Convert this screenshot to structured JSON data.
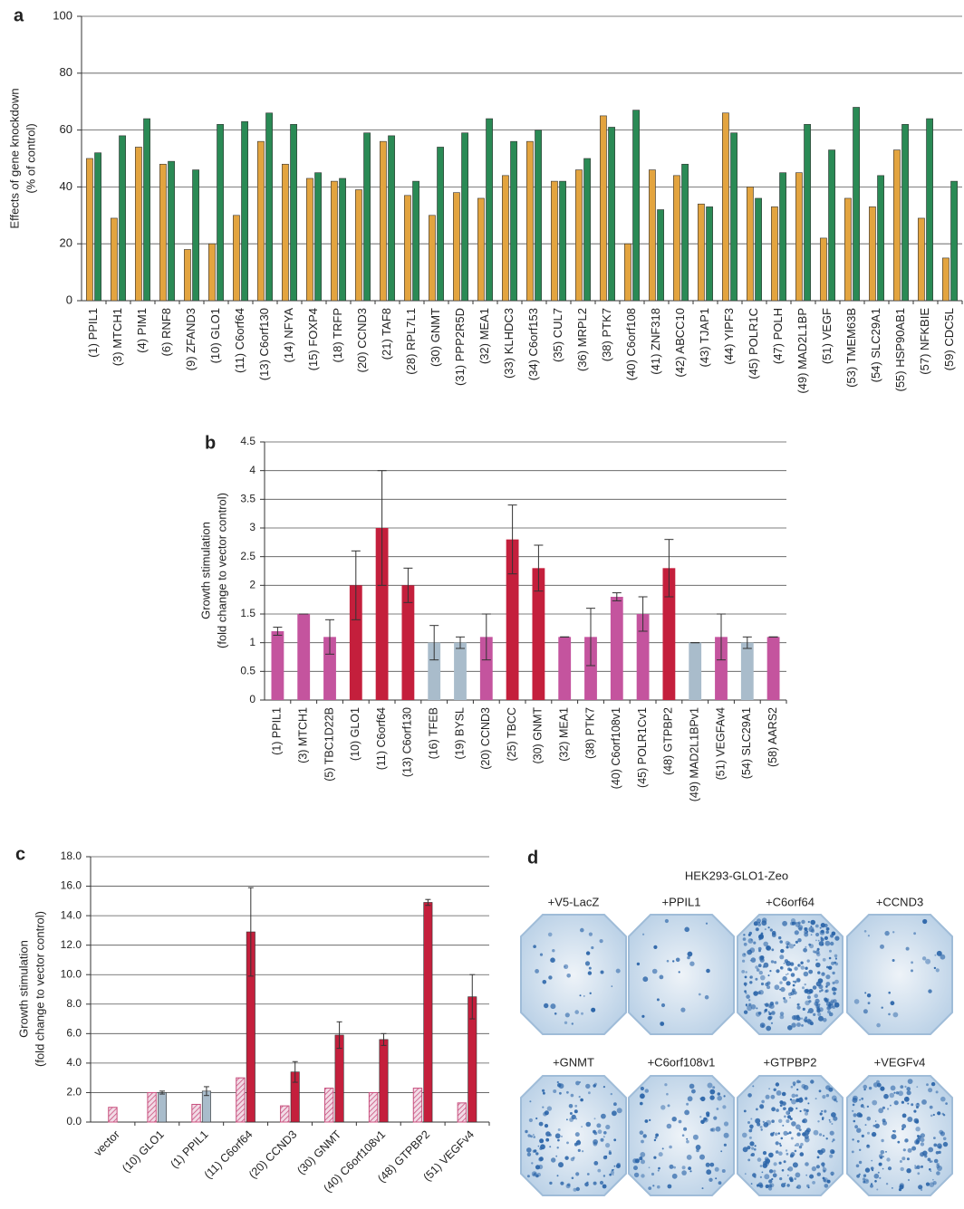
{
  "chart_data": [
    {
      "type": "bar",
      "label": "a",
      "ylabel": [
        "Effects of gene knockdown",
        "(% of control)"
      ],
      "categories": [
        "(1) PPIL1",
        "(3) MTCH1",
        "(4) PIM1",
        "(6) RNF8",
        "(9) ZFAND3",
        "(10) GLO1",
        "(11) C6orf64",
        "(13) C6orf130",
        "(14) NFYA",
        "(15) FOXP4",
        "(18) TRFP",
        "(20) CCND3",
        "(21) TAF8",
        "(28) RPL7L1",
        "(30) GNMT",
        "(31) PPP2R5D",
        "(32) MEA1",
        "(33) KLHDC3",
        "(34) C6orf153",
        "(35) CUL7",
        "(36) MRPL2",
        "(38) PTK7",
        "(40) C6orf108",
        "(41) ZNF318",
        "(42) ABCC10",
        "(43) TJAP1",
        "(44) YIPF3",
        "(45) POLR1C",
        "(47) POLH",
        "(49) MAD2L1BP",
        "(51) VEGF",
        "(53) TMEM63B",
        "(54) SLC29A1",
        "(55) HSP90AB1",
        "(57) NFKBIE",
        "(59) CDC5L"
      ],
      "series": [
        {
          "color": "#e3a43f",
          "values": [
            50,
            29,
            54,
            48,
            18,
            20,
            30,
            56,
            48,
            43,
            42,
            39,
            56,
            37,
            30,
            38,
            36,
            44,
            56,
            42,
            46,
            65,
            20,
            46,
            44,
            34,
            66,
            40,
            33,
            45,
            22,
            36,
            33,
            53,
            29,
            15
          ]
        },
        {
          "color": "#2a8a55",
          "values": [
            52,
            58,
            64,
            49,
            46,
            62,
            63,
            66,
            62,
            45,
            43,
            59,
            58,
            42,
            54,
            59,
            64,
            56,
            60,
            42,
            50,
            61,
            67,
            32,
            48,
            33,
            59,
            36,
            45,
            62,
            53,
            68,
            44,
            62,
            64,
            42
          ]
        }
      ],
      "ylim": [
        0,
        100
      ],
      "yticks": [
        0,
        20,
        40,
        60,
        80,
        100
      ],
      "grid": true
    },
    {
      "type": "bar",
      "label": "b",
      "ylabel": [
        "Growth stimulation",
        "(fold change to vector control)"
      ],
      "categories": [
        "(1) PPIL1",
        "(3) MTCH1",
        "(5) TBC1D22B",
        "(10) GLO1",
        "(11) C6orf64",
        "(13) C6orf130",
        "(16) TFEB",
        "(19) BYSL",
        "(20) CCND3",
        "(25) TBCC",
        "(30) GNMT",
        "(32) MEA1",
        "(38) PTK7",
        "(40) C6orf108v1",
        "(45) POLR1Cv1",
        "(48) GTPBP2",
        "(49) MAD2L1BPv1",
        "(51) VEGFAv4",
        "(54) SLC29A1",
        "(58) AARS2"
      ],
      "values": [
        1.2,
        1.5,
        1.1,
        2.0,
        3.0,
        2.0,
        1.0,
        1.0,
        1.1,
        2.8,
        2.3,
        1.1,
        1.1,
        1.8,
        1.5,
        2.3,
        1.0,
        1.1,
        1.0,
        1.1
      ],
      "errors": [
        0.07,
        0,
        0.3,
        0.6,
        1.0,
        0.3,
        0.3,
        0.1,
        0.4,
        0.6,
        0.4,
        0,
        0.5,
        0.07,
        0.3,
        0.5,
        0,
        0.4,
        0.1,
        0
      ],
      "colors": [
        "#c4549e",
        "#c4549e",
        "#c4549e",
        "#c41f3c",
        "#c41f3c",
        "#c41f3c",
        "#a9bccb",
        "#a9bccb",
        "#c4549e",
        "#c41f3c",
        "#c41f3c",
        "#c4549e",
        "#c4549e",
        "#c4549e",
        "#c4549e",
        "#c41f3c",
        "#a9bccb",
        "#c4549e",
        "#a9bccb",
        "#c4549e"
      ],
      "ylim": [
        0,
        4.5
      ],
      "yticks": [
        0,
        0.5,
        1,
        1.5,
        2,
        2.5,
        3,
        3.5,
        4,
        4.5
      ],
      "grid": true
    },
    {
      "type": "bar",
      "label": "c",
      "ylabel": [
        "Growth stimulation",
        "(fold change to vector control)"
      ],
      "categories": [
        "vector",
        "(10) GLO1",
        "(1) PPIL1",
        "(11) C6orf64",
        "(20) CCND3",
        "(30) GNMT",
        "(40) C6orf108v1",
        "(48) GTPBP2",
        "(51) VEGFv4"
      ],
      "series": [
        {
          "color": "#c8507e",
          "hatch": true,
          "values": [
            1.0,
            2.0,
            1.2,
            3.0,
            1.1,
            2.3,
            2.0,
            2.3,
            1.3
          ],
          "errors": [
            null,
            null,
            null,
            null,
            null,
            null,
            null,
            null,
            null
          ]
        },
        {
          "color": "#a9bccb",
          "values": [
            null,
            2.0,
            2.1,
            null,
            null,
            null,
            null,
            null,
            null
          ],
          "errors": [
            null,
            0.1,
            0.3,
            null,
            null,
            null,
            null,
            null,
            null
          ]
        },
        {
          "color": "#c41f3c",
          "values": [
            null,
            null,
            null,
            12.9,
            3.4,
            5.9,
            5.6,
            14.9,
            8.5
          ],
          "errors": [
            null,
            null,
            null,
            3.0,
            0.7,
            0.9,
            0.4,
            0.2,
            1.5
          ]
        }
      ],
      "ylim": [
        0,
        18
      ],
      "yticks": [
        {
          "value": 0,
          "label": "0.0"
        },
        {
          "value": 2,
          "label": "2.0"
        },
        {
          "value": 4,
          "label": "4.0"
        },
        {
          "value": 6,
          "label": "6.0"
        },
        {
          "value": 8,
          "label": "8.0"
        },
        {
          "value": 10,
          "label": "10.0"
        },
        {
          "value": 12,
          "label": "12.0"
        },
        {
          "value": 14,
          "label": "14.0"
        },
        {
          "value": 16,
          "label": "16.0"
        },
        {
          "value": 18,
          "label": "18.0"
        }
      ],
      "grid": true
    }
  ],
  "image_panel": {
    "label": "d",
    "title": "HEK293-GLO1-Zeo",
    "plates": [
      "+V5-LacZ",
      "+PPIL1",
      "+C6orf64",
      "+CCND3",
      "+GNMT",
      "+C6orf108v1",
      "+GTPBP2",
      "+VEGFv4"
    ]
  }
}
